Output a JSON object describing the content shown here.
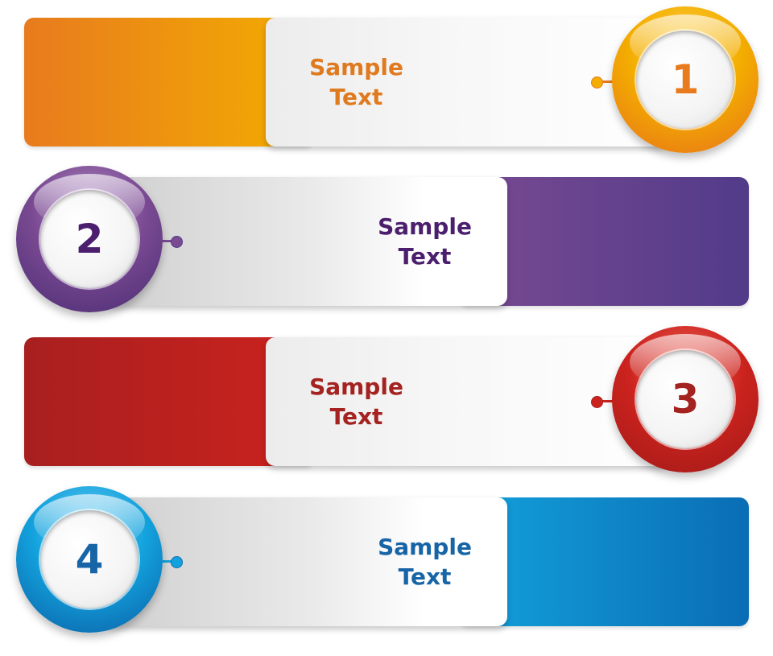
{
  "banners": [
    {
      "number": "1",
      "label_line1": "Sample",
      "label_line2": "Text",
      "color_primary": "#e87b1e",
      "color_secondary": "#f3ad00",
      "text_color": "#e07a1f"
    },
    {
      "number": "2",
      "label_line1": "Sample",
      "label_line2": "Text",
      "color_primary": "#7a4a92",
      "color_secondary": "#523b89",
      "text_color": "#4b1f6e"
    },
    {
      "number": "3",
      "label_line1": "Sample",
      "label_line2": "Text",
      "color_primary": "#a81f1f",
      "color_secondary": "#cc231e",
      "text_color": "#a4221f"
    },
    {
      "number": "4",
      "label_line1": "Sample",
      "label_line2": "Text",
      "color_primary": "#13a2dd",
      "color_secondary": "#0a6db5",
      "text_color": "#1765a6"
    }
  ]
}
